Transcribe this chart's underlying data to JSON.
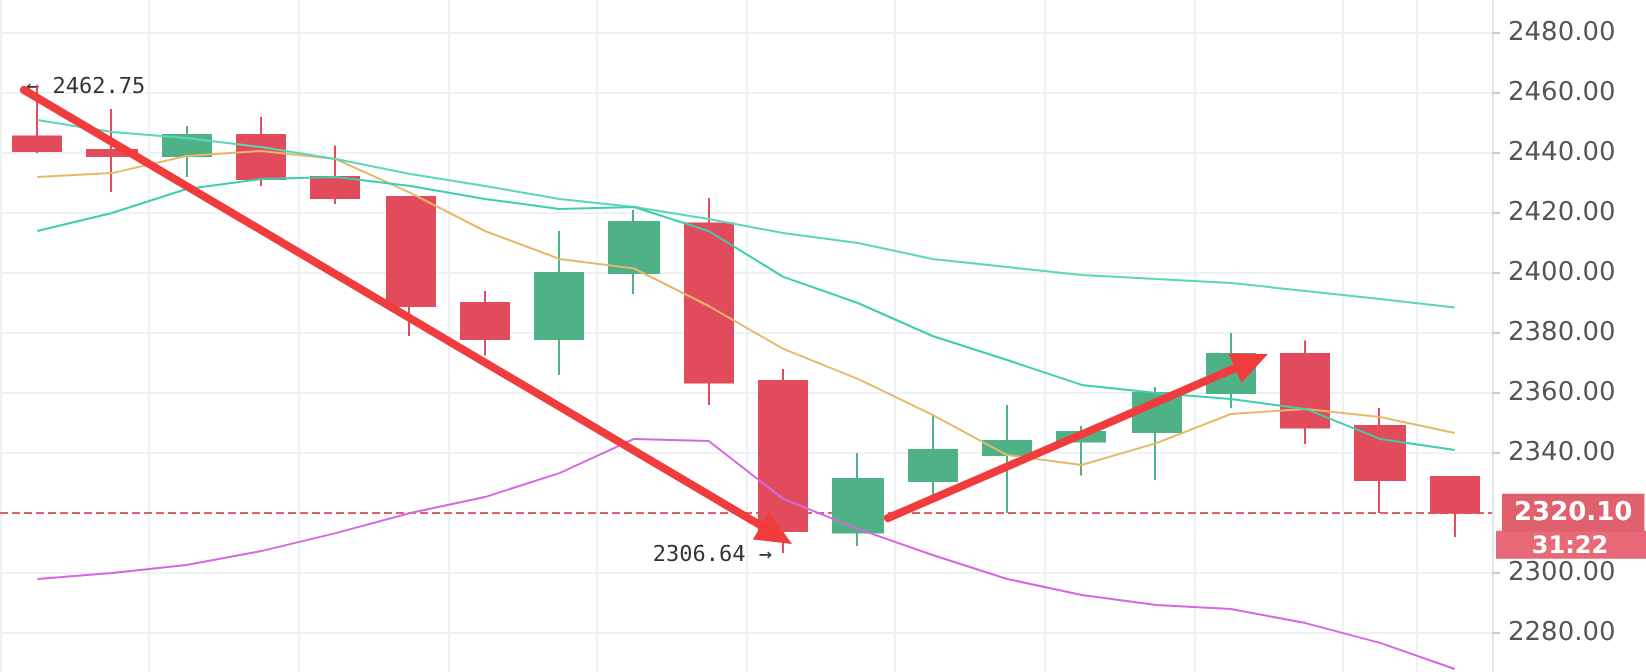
{
  "chart_data": {
    "type": "candlestick",
    "categories": [
      null,
      null,
      null,
      null,
      null,
      null,
      null,
      null,
      null,
      null,
      null,
      null,
      null,
      null,
      null,
      null,
      null,
      null,
      null,
      null
    ],
    "ohlc": [
      [
        2445.5,
        2462.75,
        2440,
        2440.7
      ],
      [
        2441,
        2454.7,
        2427,
        2439
      ],
      [
        2439,
        2449,
        2432,
        2446
      ],
      [
        2446,
        2452,
        2429,
        2431.3
      ],
      [
        2432,
        2442.5,
        2423,
        2425
      ],
      [
        2425.3,
        2425.3,
        2379,
        2389
      ],
      [
        2390,
        2394,
        2372.5,
        2378
      ],
      [
        2378,
        2414,
        2366,
        2400
      ],
      [
        2400,
        2421,
        2393,
        2417
      ],
      [
        2416.5,
        2425,
        2356,
        2363.5
      ],
      [
        2364,
        2368,
        2306.64,
        2314
      ],
      [
        2313.5,
        2340,
        2309,
        2331.3
      ],
      [
        2330.7,
        2353,
        2326,
        2341
      ],
      [
        2339.3,
        2356,
        2320,
        2344
      ],
      [
        2343.8,
        2349,
        2332.5,
        2347
      ],
      [
        2347,
        2362,
        2331,
        2360
      ],
      [
        2360,
        2380,
        2355,
        2373
      ],
      [
        2373,
        2377.5,
        2343,
        2348.5
      ],
      [
        2349,
        2355,
        2320,
        2331
      ],
      [
        2332,
        2332,
        2312,
        2320.1
      ]
    ],
    "series": [
      {
        "type": "line",
        "color": "#e5b967",
        "values": [
          2432,
          2433.3,
          2439,
          2440.7,
          2438,
          2426.7,
          2414,
          2404.7,
          2401.5,
          2389,
          2374.7,
          2364.7,
          2352.7,
          2339.3,
          2336,
          2343.3,
          2353,
          2354.7,
          2352,
          2346.7
        ]
      },
      {
        "type": "line",
        "color": "#5ad6b8",
        "values": [
          2451,
          2447,
          2445,
          2442,
          2438,
          2433,
          2429,
          2424.7,
          2422,
          2418,
          2413.3,
          2410,
          2404.7,
          2402,
          2399.3,
          2398,
          2396.7,
          2394,
          2391.3,
          2388.5
        ]
      },
      {
        "type": "line",
        "color": "#3ccfae",
        "values": [
          2414,
          2420,
          2428,
          2431.3,
          2432,
          2429,
          2424.7,
          2421.3,
          2422,
          2414,
          2398.7,
          2390,
          2379,
          2371,
          2362.7,
          2360,
          2358,
          2354.7,
          2344.7,
          2341
        ]
      },
      {
        "type": "line",
        "color": "#d866e0",
        "values": [
          2298,
          2300,
          2302.7,
          2307.3,
          2313.3,
          2320,
          2325.3,
          2333.3,
          2344.7,
          2344,
          2324.7,
          2314.7,
          2306,
          2298,
          2292.7,
          2289.3,
          2288,
          2283.3,
          2276.7,
          2268
        ]
      }
    ],
    "ylim": [
      2267,
      2491
    ],
    "yticks": [
      {
        "value": 2280,
        "label": "2280.00"
      },
      {
        "value": 2300,
        "label": "2300.00"
      },
      {
        "value": 2340,
        "label": "2340.00"
      },
      {
        "value": 2360,
        "label": "2360.00"
      },
      {
        "value": 2380,
        "label": "2380.00"
      },
      {
        "value": 2400,
        "label": "2400.00"
      },
      {
        "value": 2420,
        "label": "2420.00"
      },
      {
        "value": 2440,
        "label": "2440.00"
      },
      {
        "value": 2460,
        "label": "2460.00"
      },
      {
        "value": 2480,
        "label": "2480.00"
      }
    ],
    "ref_lines": [
      {
        "axis": "y",
        "value": 2320.1,
        "label": "2320.10",
        "color": "#e0606e",
        "line_style": "dashed"
      }
    ],
    "annotations": [
      "← 2462.75",
      "2306.64 →",
      "31:22"
    ],
    "grid": true,
    "tick_labels": "y",
    "marker": "none",
    "line_style": "solid"
  }
}
